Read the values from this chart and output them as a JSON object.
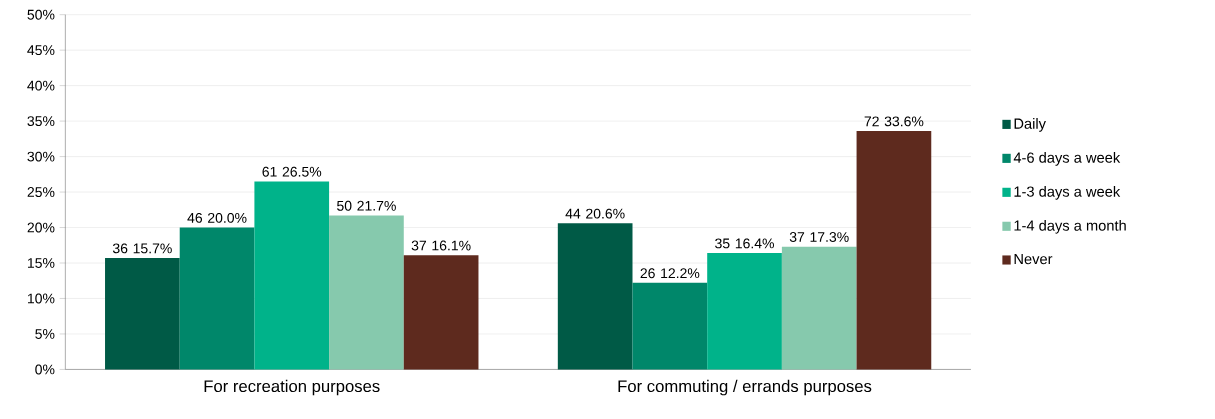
{
  "chart_data": {
    "type": "bar",
    "categories": [
      "For recreation purposes",
      "For commuting / errands purposes"
    ],
    "series": [
      {
        "name": "Daily",
        "color": "#005a46",
        "values": [
          15.7,
          20.6
        ],
        "value_labels": [
          "36 15.7%",
          "44 20.6%"
        ]
      },
      {
        "name": "4-6 days a week",
        "color": "#00876a",
        "values": [
          20.0,
          12.2
        ],
        "value_labels": [
          "46 20.0%",
          "26 12.2%"
        ]
      },
      {
        "name": "1-3 days a week",
        "color": "#00b38a",
        "values": [
          26.5,
          16.4
        ],
        "value_labels": [
          "61 26.5%",
          "35 16.4%"
        ]
      },
      {
        "name": "1-4 days a month",
        "color": "#86c9ad",
        "values": [
          21.7,
          17.3
        ],
        "value_labels": [
          "50 21.7%",
          "37 17.3%"
        ]
      },
      {
        "name": "Never",
        "color": "#5e2a1e",
        "values": [
          16.1,
          33.6
        ],
        "value_labels": [
          "37 16.1%",
          "72 33.6%"
        ]
      }
    ],
    "ylim": [
      0,
      50
    ],
    "yticks": [
      {
        "value": 0,
        "label": "0%"
      },
      {
        "value": 5,
        "label": "5%"
      },
      {
        "value": 10,
        "label": "10%"
      },
      {
        "value": 15,
        "label": "15%"
      },
      {
        "value": 20,
        "label": "20%"
      },
      {
        "value": 25,
        "label": "25%"
      },
      {
        "value": 30,
        "label": "30%"
      },
      {
        "value": 35,
        "label": "35%"
      },
      {
        "value": 40,
        "label": "40%"
      },
      {
        "value": 45,
        "label": "45%"
      },
      {
        "value": 50,
        "label": "50%"
      }
    ],
    "grid": "y",
    "legend": "right"
  }
}
